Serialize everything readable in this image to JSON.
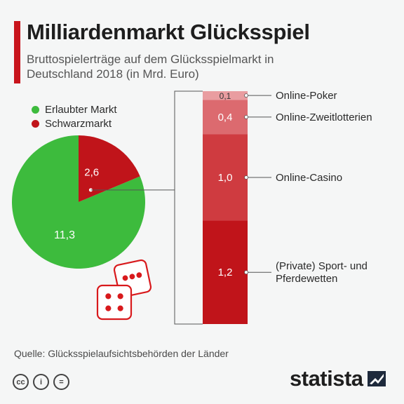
{
  "header": {
    "title": "Milliardenmarkt Glücksspiel",
    "subtitle": "Bruttospielerträge auf dem Glücksspielmarkt in Deutschland 2018 (in Mrd. Euro)"
  },
  "colors": {
    "accent": "#c8141c",
    "legal": "#3dbb3d",
    "black_market": "#c0141a",
    "bar_segments": [
      "#c0141a",
      "#cf3b40",
      "#dc6a6f",
      "#e99da0"
    ],
    "dice": "#d8191c"
  },
  "chart_data": [
    {
      "type": "pie",
      "labels": [
        "Erlaubter Markt",
        "Schwarzmarkt"
      ],
      "values": [
        11.3,
        2.6
      ],
      "value_labels": [
        "11,3",
        "2,6"
      ],
      "legend_position": "top-left"
    },
    {
      "type": "bar",
      "stacked": true,
      "categories": [
        "(Private) Sport- und Pferdewetten",
        "Online-Casino",
        "Online-Zweitlotterien",
        "Online-Poker"
      ],
      "category_lines": [
        [
          "(Private) Sport- und",
          "Pferdewetten"
        ],
        [
          "Online-Casino"
        ],
        [
          "Online-Zweitlotterien"
        ],
        [
          "Online-Poker"
        ]
      ],
      "values": [
        1.2,
        1.0,
        0.4,
        0.1
      ],
      "value_labels": [
        "1,2",
        "1,0",
        "0,4",
        "0,1"
      ]
    }
  ],
  "footer": {
    "source": "Quelle: Glücksspielaufsichtsbehörden der Länder",
    "license_icons": [
      "cc-icon",
      "person-icon",
      "equals-icon"
    ],
    "license_glyphs": [
      "cc",
      "i",
      "="
    ],
    "brand": "statista"
  },
  "decor": {
    "icon": "dice-icon"
  }
}
